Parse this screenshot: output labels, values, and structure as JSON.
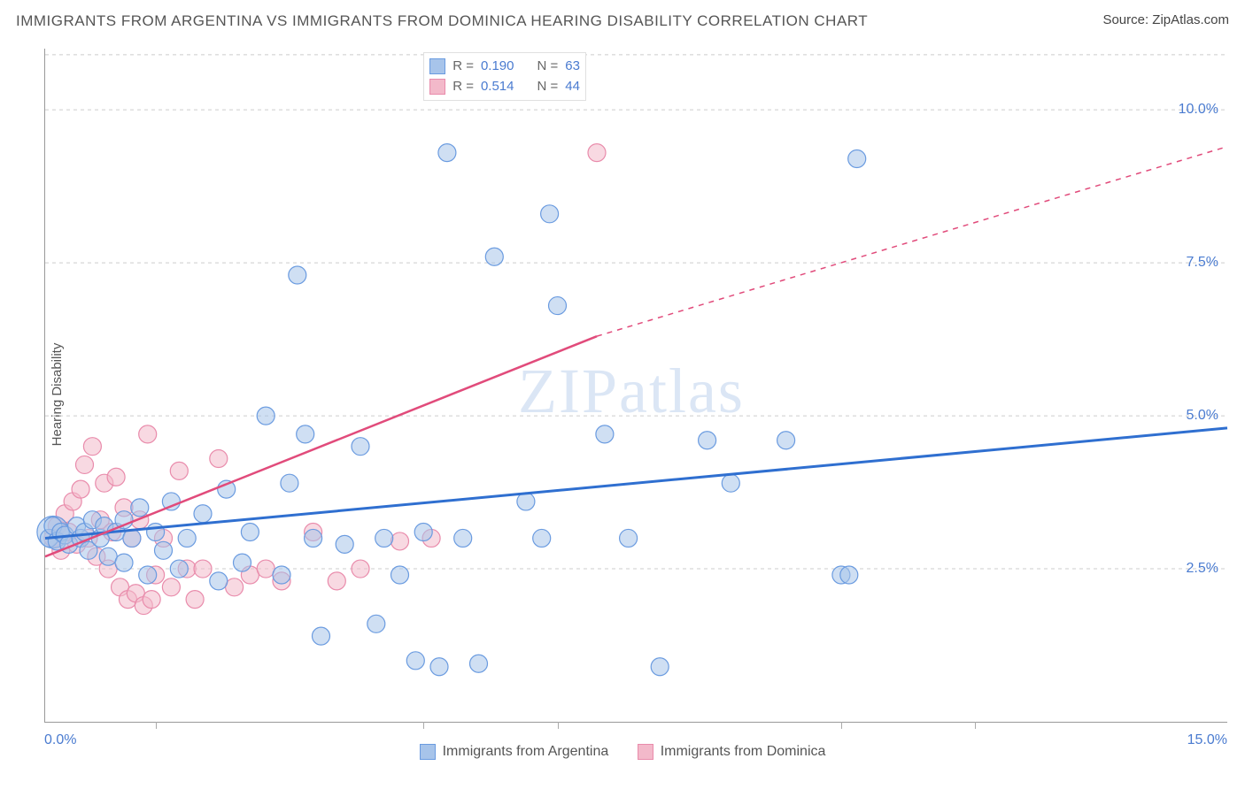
{
  "title": "IMMIGRANTS FROM ARGENTINA VS IMMIGRANTS FROM DOMINICA HEARING DISABILITY CORRELATION CHART",
  "source_label": "Source: ZipAtlas.com",
  "y_axis_label": "Hearing Disability",
  "watermark": "ZIPatlas",
  "legend_bottom": {
    "series_a": "Immigrants from Argentina",
    "series_b": "Immigrants from Dominica"
  },
  "legend_top": {
    "rows": [
      {
        "r_label": "R =",
        "r_value": "0.190",
        "n_label": "N =",
        "n_value": "63",
        "swatch": "#a7c4ea",
        "swatch_border": "#6a9be0"
      },
      {
        "r_label": "R =",
        "r_value": "0.514",
        "n_label": "N =",
        "n_value": "44",
        "swatch": "#f3b9ca",
        "swatch_border": "#e98bab"
      }
    ],
    "value_color": "#4a7bd0",
    "label_color": "#666"
  },
  "chart": {
    "type": "scatter",
    "background_color": "#ffffff",
    "grid_color": "#cccccc",
    "axis_color": "#999999",
    "tick_label_color": "#4a7bd0",
    "tick_label_fontsize": 16,
    "xlim": [
      0,
      15
    ],
    "ylim": [
      0,
      11
    ],
    "y_ticks": [
      {
        "v": 2.5,
        "label": "2.5%"
      },
      {
        "v": 5.0,
        "label": "5.0%"
      },
      {
        "v": 7.5,
        "label": "7.5%"
      },
      {
        "v": 10.0,
        "label": "10.0%"
      }
    ],
    "x_minor_ticks": [
      1.4,
      4.8,
      6.5,
      10.1,
      11.8
    ],
    "x_tick_labels": [
      {
        "v": 0.0,
        "label": "0.0%"
      },
      {
        "v": 15.0,
        "label": "15.0%"
      }
    ],
    "series_a": {
      "name": "Immigrants from Argentina",
      "marker_fill": "#a7c4ea",
      "marker_stroke": "#6a9be0",
      "marker_fill_opacity": 0.55,
      "marker_r": 10,
      "trend_color": "#2f6fd0",
      "trend_width": 3,
      "trend_p0": [
        0,
        3.0
      ],
      "trend_p1": [
        15,
        4.8
      ],
      "points": [
        [
          0.1,
          3.1,
          18
        ],
        [
          0.05,
          3.0
        ],
        [
          0.1,
          3.2
        ],
        [
          0.15,
          2.95
        ],
        [
          0.2,
          3.1
        ],
        [
          0.25,
          3.05
        ],
        [
          0.3,
          2.9
        ],
        [
          0.4,
          3.2
        ],
        [
          0.45,
          3.0
        ],
        [
          0.5,
          3.1
        ],
        [
          0.55,
          2.8
        ],
        [
          0.6,
          3.3
        ],
        [
          0.7,
          3.0
        ],
        [
          0.75,
          3.2
        ],
        [
          0.8,
          2.7
        ],
        [
          0.9,
          3.1
        ],
        [
          1.0,
          3.3
        ],
        [
          1.0,
          2.6
        ],
        [
          1.1,
          3.0
        ],
        [
          1.2,
          3.5
        ],
        [
          1.3,
          2.4
        ],
        [
          1.4,
          3.1
        ],
        [
          1.5,
          2.8
        ],
        [
          1.6,
          3.6
        ],
        [
          1.7,
          2.5
        ],
        [
          1.8,
          3.0
        ],
        [
          2.0,
          3.4
        ],
        [
          2.2,
          2.3
        ],
        [
          2.3,
          3.8
        ],
        [
          2.5,
          2.6
        ],
        [
          2.6,
          3.1
        ],
        [
          2.8,
          5.0
        ],
        [
          3.0,
          2.4
        ],
        [
          3.1,
          3.9
        ],
        [
          3.2,
          7.3
        ],
        [
          3.3,
          4.7
        ],
        [
          3.4,
          3.0
        ],
        [
          3.5,
          1.4
        ],
        [
          3.8,
          2.9
        ],
        [
          4.0,
          4.5
        ],
        [
          4.2,
          1.6
        ],
        [
          4.3,
          3.0
        ],
        [
          4.5,
          2.4
        ],
        [
          4.7,
          1.0
        ],
        [
          4.8,
          3.1
        ],
        [
          5.0,
          0.9
        ],
        [
          5.1,
          9.3
        ],
        [
          5.3,
          3.0
        ],
        [
          5.5,
          0.95
        ],
        [
          5.7,
          7.6
        ],
        [
          6.1,
          3.6
        ],
        [
          6.3,
          3.0
        ],
        [
          6.4,
          8.3
        ],
        [
          6.5,
          6.8
        ],
        [
          7.1,
          4.7
        ],
        [
          7.4,
          3.0
        ],
        [
          7.8,
          0.9
        ],
        [
          8.4,
          4.6
        ],
        [
          8.7,
          3.9
        ],
        [
          9.4,
          4.6
        ],
        [
          10.1,
          2.4
        ],
        [
          10.2,
          2.4
        ],
        [
          10.3,
          9.2
        ]
      ]
    },
    "series_b": {
      "name": "Immigrants from Dominica",
      "marker_fill": "#f3b9ca",
      "marker_stroke": "#e98bab",
      "marker_fill_opacity": 0.55,
      "marker_r": 10,
      "trend_color": "#e14b7b",
      "trend_solid_width": 2.5,
      "trend_solid_p0": [
        0,
        2.7
      ],
      "trend_solid_p1": [
        7.0,
        6.3
      ],
      "trend_dash_p0": [
        7.0,
        6.3
      ],
      "trend_dash_p1": [
        15,
        9.4
      ],
      "trend_dash_pattern": "6 6",
      "points": [
        [
          0.1,
          3.0
        ],
        [
          0.15,
          3.2
        ],
        [
          0.2,
          2.8
        ],
        [
          0.25,
          3.4
        ],
        [
          0.3,
          3.1
        ],
        [
          0.35,
          3.6
        ],
        [
          0.4,
          2.9
        ],
        [
          0.45,
          3.8
        ],
        [
          0.5,
          4.2
        ],
        [
          0.55,
          3.0
        ],
        [
          0.6,
          4.5
        ],
        [
          0.65,
          2.7
        ],
        [
          0.7,
          3.3
        ],
        [
          0.75,
          3.9
        ],
        [
          0.8,
          2.5
        ],
        [
          0.85,
          3.1
        ],
        [
          0.9,
          4.0
        ],
        [
          0.95,
          2.2
        ],
        [
          1.0,
          3.5
        ],
        [
          1.05,
          2.0
        ],
        [
          1.1,
          3.0
        ],
        [
          1.15,
          2.1
        ],
        [
          1.2,
          3.3
        ],
        [
          1.25,
          1.9
        ],
        [
          1.3,
          4.7
        ],
        [
          1.35,
          2.0
        ],
        [
          1.4,
          2.4
        ],
        [
          1.5,
          3.0
        ],
        [
          1.6,
          2.2
        ],
        [
          1.7,
          4.1
        ],
        [
          1.8,
          2.5
        ],
        [
          1.9,
          2.0
        ],
        [
          2.0,
          2.5
        ],
        [
          2.2,
          4.3
        ],
        [
          2.4,
          2.2
        ],
        [
          2.6,
          2.4
        ],
        [
          2.8,
          2.5
        ],
        [
          3.0,
          2.3
        ],
        [
          3.4,
          3.1
        ],
        [
          3.7,
          2.3
        ],
        [
          4.0,
          2.5
        ],
        [
          4.5,
          2.95
        ],
        [
          4.9,
          3.0
        ],
        [
          7.0,
          9.3
        ]
      ]
    }
  }
}
